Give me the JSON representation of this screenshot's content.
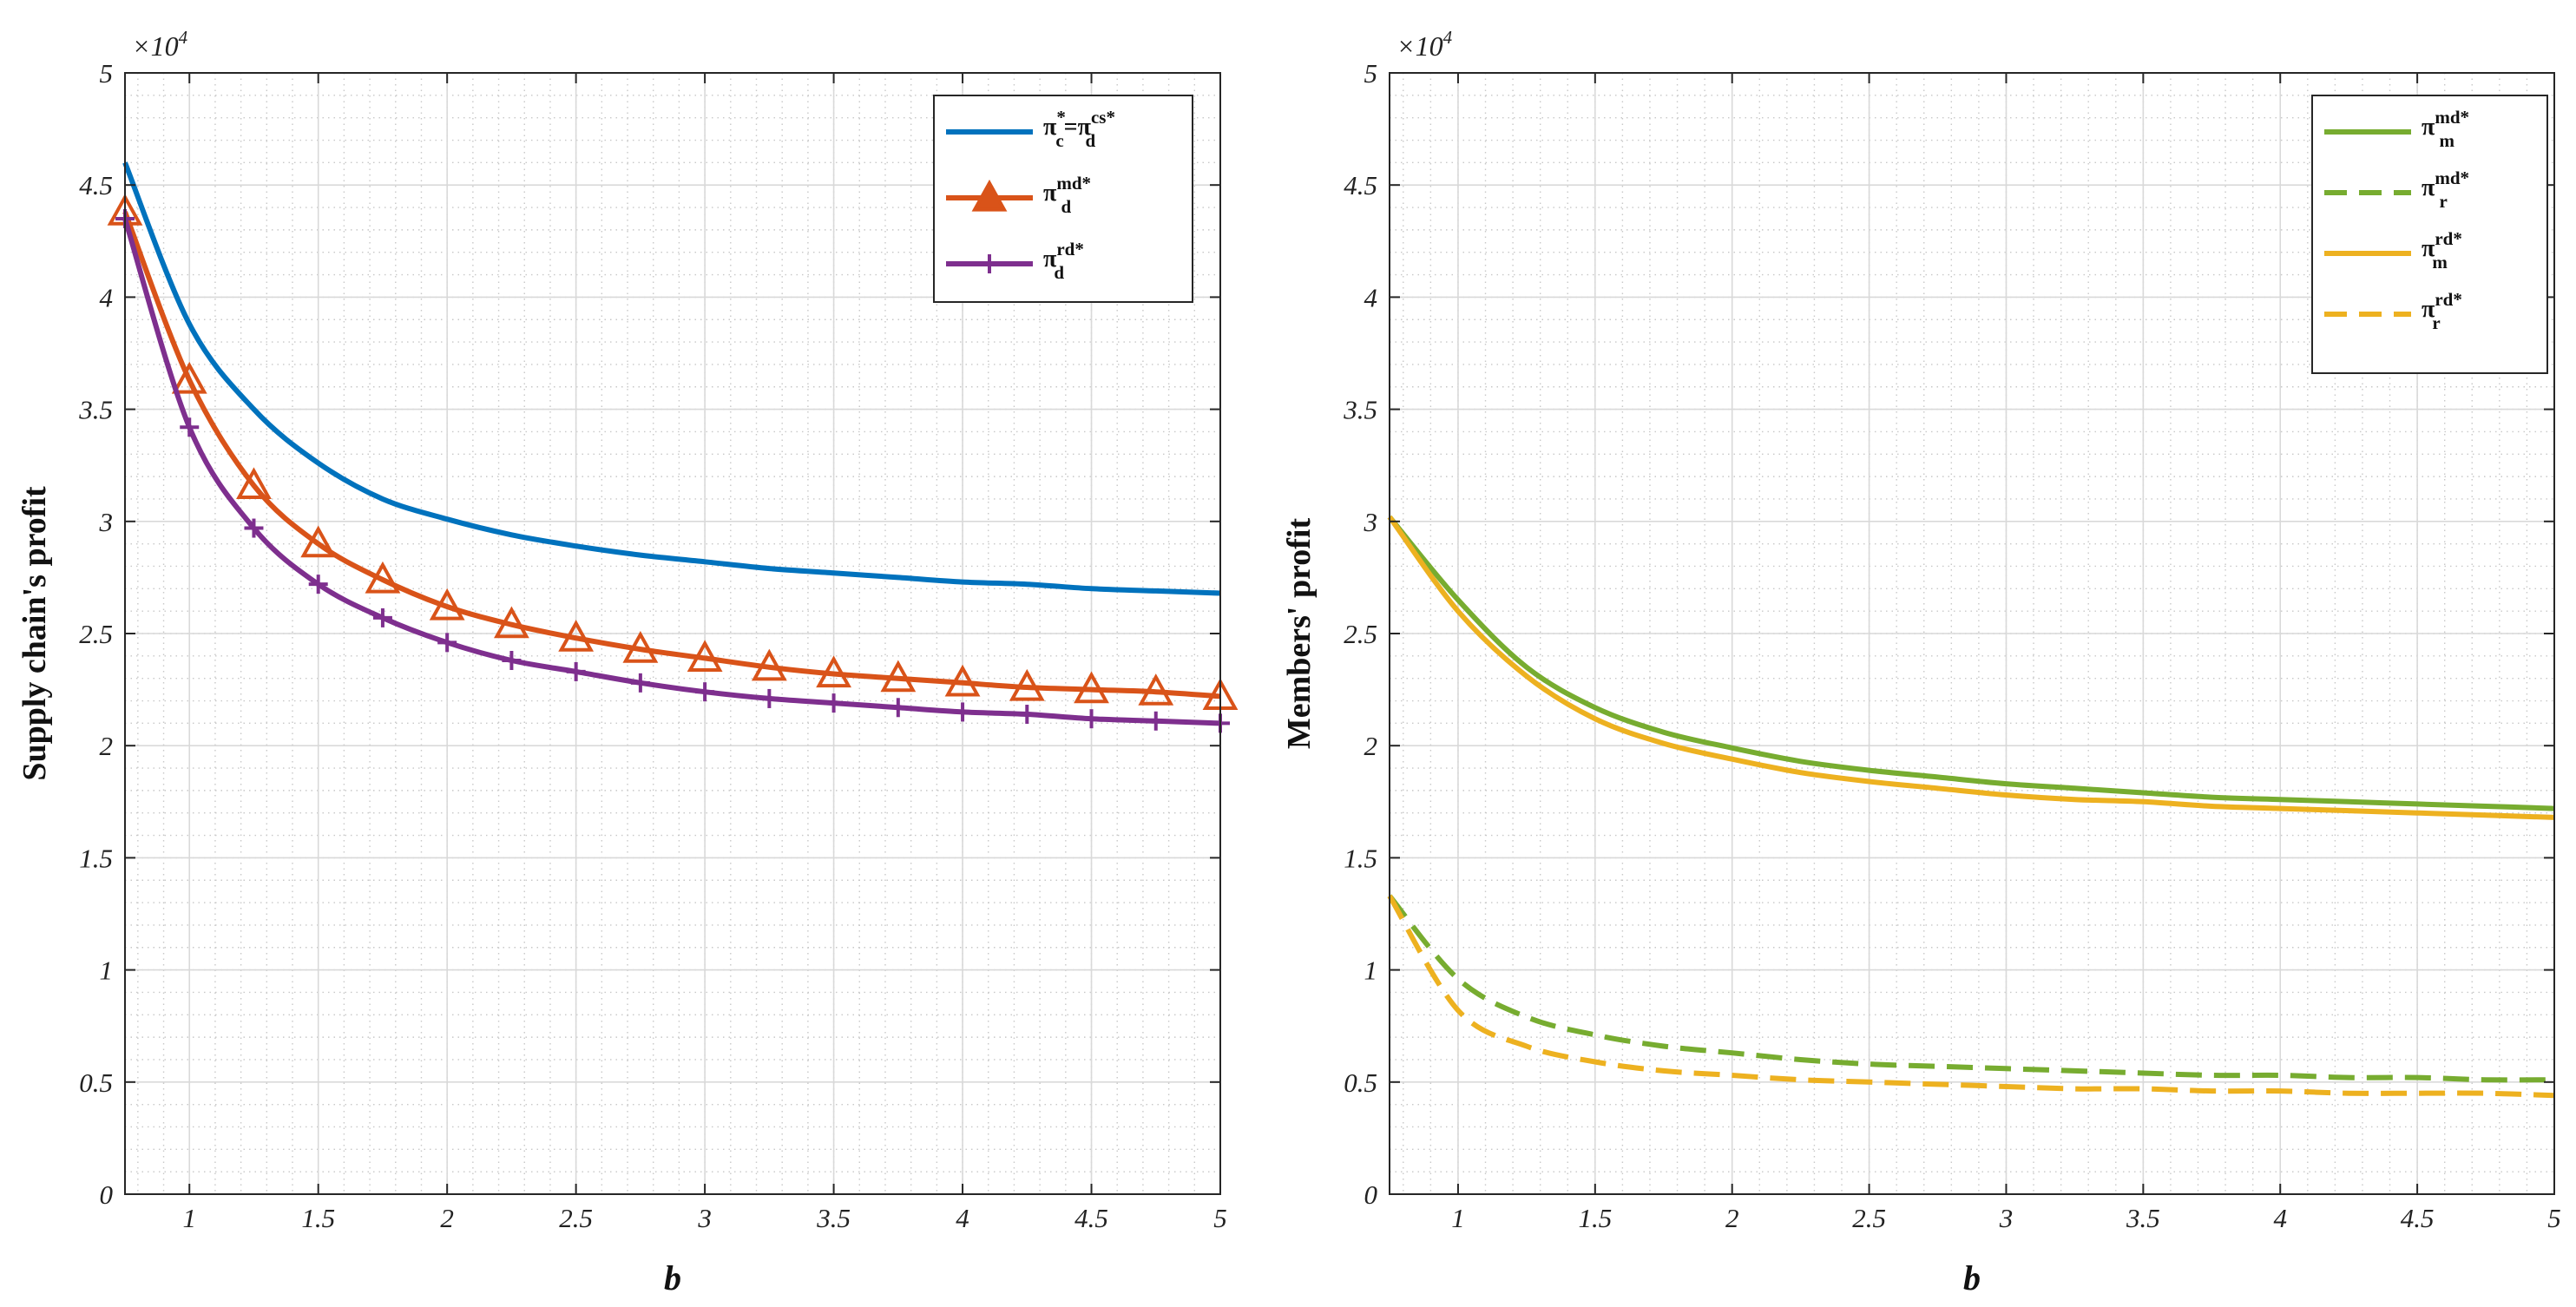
{
  "chart_data": [
    {
      "type": "line",
      "xlabel": "b",
      "ylabel": "Supply chain's profit",
      "y_exponent": {
        "base": "×10",
        "power": "4"
      },
      "xlim": [
        0.75,
        5
      ],
      "ylim": [
        0,
        5
      ],
      "x_ticks": [
        1,
        1.5,
        2,
        2.5,
        3,
        3.5,
        4,
        4.5,
        5
      ],
      "x_tick_labels": [
        "1",
        "1.5",
        "2",
        "2.5",
        "3",
        "3.5",
        "4",
        "4.5",
        "5"
      ],
      "y_ticks": [
        0,
        0.5,
        1,
        1.5,
        2,
        2.5,
        3,
        3.5,
        4,
        4.5,
        5
      ],
      "y_tick_labels": [
        "0",
        "0.5",
        "1",
        "1.5",
        "2",
        "2.5",
        "3",
        "3.5",
        "4",
        "4.5",
        "5"
      ],
      "grid": true,
      "legend_position": "top-right",
      "x": [
        0.75,
        1,
        1.25,
        1.5,
        1.75,
        2,
        2.25,
        2.5,
        2.75,
        3,
        3.25,
        3.5,
        3.75,
        4,
        4.25,
        4.5,
        4.75,
        5
      ],
      "series": [
        {
          "name": "πc*=πdcs*",
          "legend": {
            "main": "π",
            "sub": "c",
            "sup": "*",
            "eq": "=π",
            "sub2": "d",
            "sup2": "cs*"
          },
          "color": "#0072BD",
          "marker": "none",
          "values": [
            4.6,
            3.88,
            3.5,
            3.26,
            3.1,
            3.01,
            2.94,
            2.89,
            2.85,
            2.82,
            2.79,
            2.77,
            2.75,
            2.73,
            2.72,
            2.7,
            2.69,
            2.68
          ]
        },
        {
          "name": "πdmd*",
          "legend": {
            "main": "π",
            "sub": "d",
            "sup": "md*"
          },
          "color": "#D95319",
          "marker": "triangle",
          "values": [
            4.38,
            3.63,
            3.16,
            2.9,
            2.74,
            2.62,
            2.54,
            2.48,
            2.43,
            2.39,
            2.35,
            2.32,
            2.3,
            2.28,
            2.26,
            2.25,
            2.24,
            2.22
          ]
        },
        {
          "name": "πdrd*",
          "legend": {
            "main": "π",
            "sub": "d",
            "sup": "rd*"
          },
          "color": "#7E2F8E",
          "marker": "plus",
          "values": [
            4.35,
            3.42,
            2.97,
            2.72,
            2.57,
            2.46,
            2.38,
            2.33,
            2.28,
            2.24,
            2.21,
            2.19,
            2.17,
            2.15,
            2.14,
            2.12,
            2.11,
            2.1
          ]
        }
      ]
    },
    {
      "type": "line",
      "xlabel": "b",
      "ylabel": "Members' profit",
      "y_exponent": {
        "base": "×10",
        "power": "4"
      },
      "xlim": [
        0.75,
        5
      ],
      "ylim": [
        0,
        5
      ],
      "x_ticks": [
        1,
        1.5,
        2,
        2.5,
        3,
        3.5,
        4,
        4.5,
        5
      ],
      "x_tick_labels": [
        "1",
        "1.5",
        "2",
        "2.5",
        "3",
        "3.5",
        "4",
        "4.5",
        "5"
      ],
      "y_ticks": [
        0,
        0.5,
        1,
        1.5,
        2,
        2.5,
        3,
        3.5,
        4,
        4.5,
        5
      ],
      "y_tick_labels": [
        "0",
        "0.5",
        "1",
        "1.5",
        "2",
        "2.5",
        "3",
        "3.5",
        "4",
        "4.5",
        "5"
      ],
      "grid": true,
      "legend_position": "top-right",
      "x": [
        0.75,
        1,
        1.25,
        1.5,
        1.75,
        2,
        2.25,
        2.5,
        2.75,
        3,
        3.25,
        3.5,
        3.75,
        4,
        4.25,
        4.5,
        4.75,
        5
      ],
      "series": [
        {
          "name": "πmmd*",
          "legend": {
            "main": "π",
            "sub": "m",
            "sup": "md*"
          },
          "color": "#77AC30",
          "dash": "solid",
          "values": [
            3.02,
            2.65,
            2.35,
            2.17,
            2.06,
            1.99,
            1.93,
            1.89,
            1.86,
            1.83,
            1.81,
            1.79,
            1.77,
            1.76,
            1.75,
            1.74,
            1.73,
            1.72
          ]
        },
        {
          "name": "πrmd*",
          "legend": {
            "main": "π",
            "sub": "r",
            "sup": "md*"
          },
          "color": "#77AC30",
          "dash": "dashed",
          "values": [
            1.33,
            0.96,
            0.79,
            0.71,
            0.66,
            0.63,
            0.6,
            0.58,
            0.57,
            0.56,
            0.55,
            0.54,
            0.53,
            0.53,
            0.52,
            0.52,
            0.51,
            0.51
          ]
        },
        {
          "name": "πmrd*",
          "legend": {
            "main": "π",
            "sub": "m",
            "sup": "rd*"
          },
          "color": "#EDB120",
          "dash": "solid",
          "values": [
            3.02,
            2.6,
            2.31,
            2.12,
            2.01,
            1.94,
            1.88,
            1.84,
            1.81,
            1.78,
            1.76,
            1.75,
            1.73,
            1.72,
            1.71,
            1.7,
            1.69,
            1.68
          ]
        },
        {
          "name": "πrrd*",
          "legend": {
            "main": "π",
            "sub": "r",
            "sup": "rd*"
          },
          "color": "#EDB120",
          "dash": "dashed",
          "values": [
            1.33,
            0.82,
            0.66,
            0.59,
            0.55,
            0.53,
            0.51,
            0.5,
            0.49,
            0.48,
            0.47,
            0.47,
            0.46,
            0.46,
            0.45,
            0.45,
            0.45,
            0.44
          ]
        }
      ]
    }
  ]
}
